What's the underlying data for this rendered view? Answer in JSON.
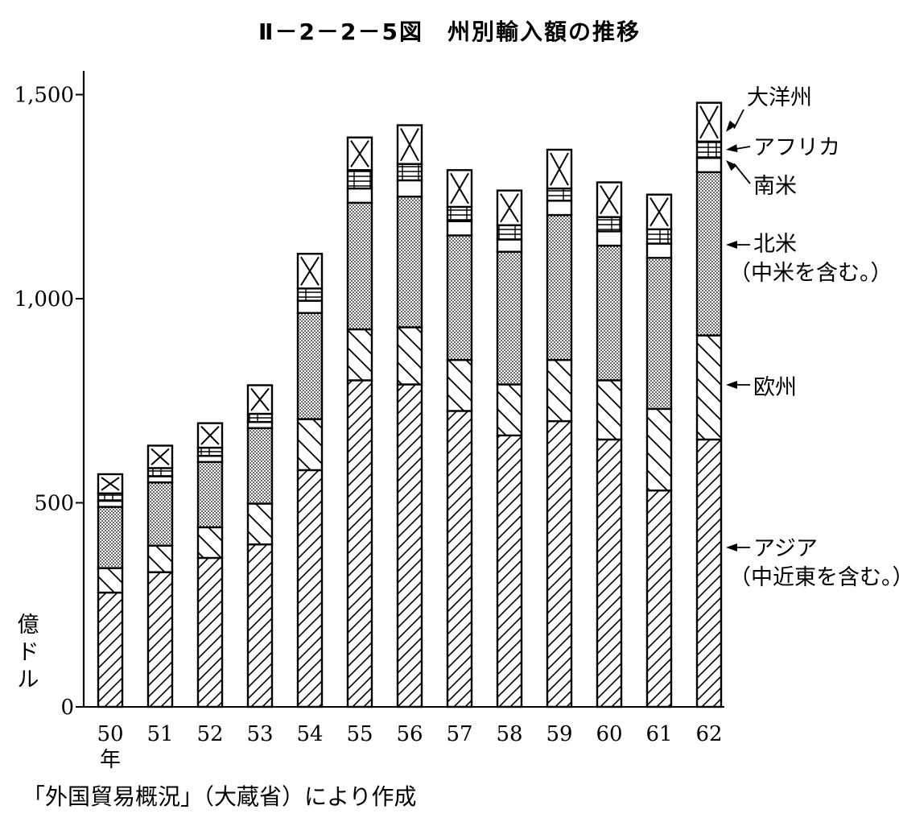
{
  "title": "Ⅱ－2－2－5図　州別輸入額の推移",
  "source": "「外国貿易概況」（大蔵省）により作成",
  "unit": "億ドル",
  "chart_data": {
    "type": "bar",
    "stacked": true,
    "categories": [
      "50",
      "51",
      "52",
      "53",
      "54",
      "55",
      "56",
      "57",
      "58",
      "59",
      "60",
      "61",
      "62"
    ],
    "x_sublabel": "年",
    "ylim": [
      0,
      1500
    ],
    "yticks": [
      0,
      500,
      1000,
      1500
    ],
    "ytick_labels": [
      "0",
      "500",
      "1,000",
      "1,500"
    ],
    "ylabel": "億ドル",
    "series": [
      {
        "name": "アジア（中近東を含む。）",
        "pattern": "diagonal-forward",
        "values": [
          280,
          330,
          365,
          398,
          580,
          800,
          790,
          725,
          665,
          700,
          655,
          530,
          655
        ]
      },
      {
        "name": "欧州",
        "pattern": "diagonal-backward",
        "values": [
          60,
          65,
          75,
          100,
          125,
          125,
          140,
          125,
          125,
          150,
          145,
          200,
          255
        ]
      },
      {
        "name": "北米（中米を含む。）",
        "pattern": "dotted",
        "values": [
          150,
          155,
          160,
          185,
          260,
          310,
          320,
          305,
          325,
          355,
          330,
          370,
          400
        ]
      },
      {
        "name": "南米",
        "pattern": "blank",
        "values": [
          15,
          15,
          15,
          15,
          30,
          35,
          40,
          35,
          30,
          35,
          35,
          35,
          35
        ]
      },
      {
        "name": "アフリカ",
        "pattern": "grid",
        "values": [
          18,
          20,
          20,
          20,
          30,
          45,
          40,
          35,
          35,
          30,
          35,
          35,
          40
        ]
      },
      {
        "name": "大洋州",
        "pattern": "cross",
        "values": [
          47,
          55,
          60,
          70,
          85,
          80,
          95,
          90,
          85,
          95,
          85,
          85,
          95
        ]
      }
    ],
    "legend": {
      "placement": "right"
    }
  }
}
